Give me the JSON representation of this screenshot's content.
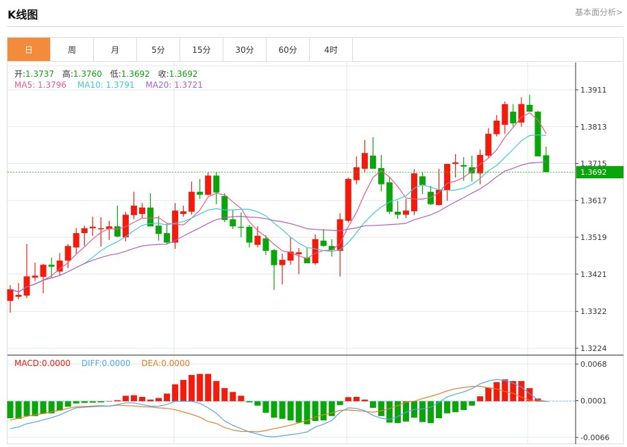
{
  "header": {
    "title": "K线图",
    "fundamental_link": "基本面分析>"
  },
  "tabs": [
    {
      "label": "日",
      "active": true
    },
    {
      "label": "周"
    },
    {
      "label": "月"
    },
    {
      "label": "5分"
    },
    {
      "label": "15分"
    },
    {
      "label": "30分"
    },
    {
      "label": "60分"
    },
    {
      "label": "4时"
    }
  ],
  "ohlc_legend": {
    "open_label": "开:",
    "open": "1.3737",
    "high_label": "高:",
    "high": "1.3760",
    "low_label": "低:",
    "low": "1.3692",
    "close_label": "收:",
    "close": "1.3692"
  },
  "ma_legend": {
    "ma5": "MA5: 1.3796",
    "ma10": "MA10: 1.3791",
    "ma20": "MA20: 1.3721"
  },
  "macd_legend": {
    "macd": "MACD:0.0000",
    "diff": "DIFF:0.0000",
    "dea": "DEA:0.0000"
  },
  "colors": {
    "up": "#f21b0c",
    "down": "#0aa50a",
    "ma5": "#f0588a",
    "ma10": "#3cc8e0",
    "ma20": "#b05cc8",
    "diff": "#4aa8f0",
    "dea": "#f07a1e",
    "active_tab": "#f28b3c"
  },
  "chart_data": [
    {
      "type": "candlestick",
      "title": "K线图",
      "current_price": 1.3692,
      "current_price_label": "1.3692",
      "y_ticks": [
        "1.3911",
        "1.3813",
        "1.3715",
        "1.3617",
        "1.3519",
        "1.3421",
        "1.3322",
        "1.3224"
      ],
      "ylim": [
        1.3224,
        1.3911
      ],
      "candles_ohlc": [
        [
          1.335,
          1.3392,
          1.3319,
          1.3381
        ],
        [
          1.3361,
          1.3397,
          1.3354,
          1.3366
        ],
        [
          1.3364,
          1.3501,
          1.3357,
          1.3415
        ],
        [
          1.3412,
          1.3452,
          1.3403,
          1.3417
        ],
        [
          1.3414,
          1.3448,
          1.337,
          1.3446
        ],
        [
          1.3446,
          1.3465,
          1.341,
          1.3441
        ],
        [
          1.3428,
          1.3477,
          1.3417,
          1.3457
        ],
        [
          1.3457,
          1.3501,
          1.3437,
          1.3496
        ],
        [
          1.3492,
          1.3543,
          1.3474,
          1.353
        ],
        [
          1.353,
          1.355,
          1.3496,
          1.3543
        ],
        [
          1.3543,
          1.3574,
          1.3523,
          1.3547
        ],
        [
          1.3541,
          1.3572,
          1.3494,
          1.3543
        ],
        [
          1.3541,
          1.3563,
          1.3512,
          1.3548
        ],
        [
          1.3548,
          1.3603,
          1.3519,
          1.3521
        ],
        [
          1.3519,
          1.3587,
          1.3508,
          1.3579
        ],
        [
          1.3578,
          1.364,
          1.3567,
          1.3603
        ],
        [
          1.3581,
          1.361,
          1.357,
          1.3598
        ],
        [
          1.3598,
          1.3636,
          1.3548,
          1.3548
        ],
        [
          1.355,
          1.3576,
          1.351,
          1.3528
        ],
        [
          1.353,
          1.3556,
          1.3501,
          1.3505
        ],
        [
          1.3505,
          1.361,
          1.3488,
          1.359
        ],
        [
          1.3581,
          1.3603,
          1.3574,
          1.3588
        ],
        [
          1.3587,
          1.3667,
          1.3579,
          1.364
        ],
        [
          1.364,
          1.3674,
          1.3621,
          1.3632
        ],
        [
          1.3632,
          1.3692,
          1.363,
          1.3683
        ],
        [
          1.3683,
          1.3692,
          1.3607,
          1.3638
        ],
        [
          1.3629,
          1.3636,
          1.3559,
          1.3565
        ],
        [
          1.3567,
          1.3592,
          1.3541,
          1.3548
        ],
        [
          1.3547,
          1.3585,
          1.3519,
          1.3545
        ],
        [
          1.3547,
          1.3552,
          1.3492,
          1.3505
        ],
        [
          1.3499,
          1.3548,
          1.3492,
          1.3523
        ],
        [
          1.3516,
          1.3525,
          1.3472,
          1.3483
        ],
        [
          1.3485,
          1.3488,
          1.3379,
          1.3445
        ],
        [
          1.3445,
          1.3476,
          1.3394,
          1.3459
        ],
        [
          1.3457,
          1.3519,
          1.3446,
          1.3481
        ],
        [
          1.3474,
          1.349,
          1.3421,
          1.3479
        ],
        [
          1.3465,
          1.349,
          1.345,
          1.345
        ],
        [
          1.345,
          1.3527,
          1.3446,
          1.3514
        ],
        [
          1.351,
          1.3541,
          1.3494,
          1.3496
        ],
        [
          1.3496,
          1.3514,
          1.3468,
          1.3485
        ],
        [
          1.3483,
          1.3583,
          1.3415,
          1.3567
        ],
        [
          1.3563,
          1.3678,
          1.3558,
          1.3674
        ],
        [
          1.3671,
          1.3734,
          1.366,
          1.3705
        ],
        [
          1.3701,
          1.3778,
          1.3691,
          1.3743
        ],
        [
          1.3736,
          1.3785,
          1.3701,
          1.3701
        ],
        [
          1.3703,
          1.3738,
          1.3641,
          1.366
        ],
        [
          1.3665,
          1.368,
          1.3581,
          1.3587
        ],
        [
          1.3587,
          1.3616,
          1.3568,
          1.3579
        ],
        [
          1.3579,
          1.3621,
          1.357,
          1.359
        ],
        [
          1.3588,
          1.37,
          1.3578,
          1.3689
        ],
        [
          1.3681,
          1.3692,
          1.3634,
          1.3658
        ],
        [
          1.364,
          1.3656,
          1.3605,
          1.3607
        ],
        [
          1.3605,
          1.3701,
          1.3603,
          1.3645
        ],
        [
          1.3645,
          1.3714,
          1.3616,
          1.3714
        ],
        [
          1.3714,
          1.374,
          1.3678,
          1.3718
        ],
        [
          1.3711,
          1.3732,
          1.3669,
          1.3707
        ],
        [
          1.3705,
          1.3736,
          1.3667,
          1.3689
        ],
        [
          1.3689,
          1.3752,
          1.366,
          1.3738
        ],
        [
          1.3736,
          1.3809,
          1.3731,
          1.3794
        ],
        [
          1.3793,
          1.3844,
          1.3787,
          1.3829
        ],
        [
          1.3818,
          1.388,
          1.3794,
          1.3873
        ],
        [
          1.3853,
          1.3873,
          1.3814,
          1.3822
        ],
        [
          1.3824,
          1.3891,
          1.3813,
          1.3873
        ],
        [
          1.3871,
          1.3898,
          1.3853,
          1.3853
        ],
        [
          1.3853,
          1.3855,
          1.3734,
          1.3734
        ],
        [
          1.3737,
          1.376,
          1.3692,
          1.3692
        ]
      ],
      "series": [
        {
          "name": "MA5",
          "period": 5
        },
        {
          "name": "MA10",
          "period": 10
        },
        {
          "name": "MA20",
          "period": 20
        }
      ]
    },
    {
      "type": "bar+line",
      "title": "MACD",
      "y_ticks": [
        "0.0068",
        "0.0001",
        "-0.0066"
      ],
      "ylim": [
        -0.0066,
        0.0068
      ],
      "macd_hist": [
        -0.0031,
        -0.0032,
        -0.0027,
        -0.0027,
        -0.0023,
        -0.0022,
        -0.0017,
        -0.001,
        -0.0004,
        -0.0003,
        -0.00025,
        -0.0002,
        0,
        0.0002,
        0.001,
        0.0011,
        0.0008,
        0.0003,
        0.0006,
        0.0014,
        0.0031,
        0.0039,
        0.0048,
        0.005,
        0.005,
        0.0037,
        0.0024,
        0.0017,
        0.001,
        -0.0002,
        -0.0008,
        -0.0021,
        -0.003,
        -0.0032,
        -0.0035,
        -0.0039,
        -0.0042,
        -0.0036,
        -0.0035,
        -0.0027,
        -0.0007,
        0.00075,
        0.0008,
        0.0003,
        -0.0012,
        -0.0027,
        -0.0039,
        -0.004,
        -0.0037,
        -0.003,
        -0.0038,
        -0.004,
        -0.0031,
        -0.0022,
        -0.002,
        -0.0016,
        -0.0008,
        0.0009,
        0.0025,
        0.0035,
        0.004,
        0.0037,
        0.0037,
        0.0024,
        0.0005,
        0
      ],
      "diff": [
        -0.005,
        -0.0047,
        -0.0041,
        -0.0038,
        -0.0034,
        -0.003,
        -0.0025,
        -0.0018,
        -0.0012,
        -0.0011,
        -0.001,
        -0.0009,
        -0.0009,
        -0.0006,
        -0.0003,
        -0.0003,
        -0.0006,
        -0.0009,
        -0.0009,
        -0.0006,
        0,
        0,
        0,
        -0.0004,
        -0.0012,
        -0.0022,
        -0.0036,
        -0.0044,
        -0.005,
        -0.0056,
        -0.006,
        -0.0064,
        -0.0065,
        -0.0063,
        -0.0061,
        -0.0059,
        -0.0056,
        -0.0047,
        -0.0042,
        -0.0035,
        -0.002,
        -0.0012,
        -0.0013,
        -0.0017,
        -0.0026,
        -0.0031,
        -0.0033,
        -0.0028,
        -0.002,
        -0.0015,
        -0.0014,
        -0.0011,
        -0.0002,
        0.0008,
        0.0013,
        0.0017,
        0.0023,
        0.0032,
        0.0037,
        0.004,
        0.0038,
        0.0033,
        0.0026,
        0.0014,
        0.00025,
        0
      ]
    }
  ]
}
